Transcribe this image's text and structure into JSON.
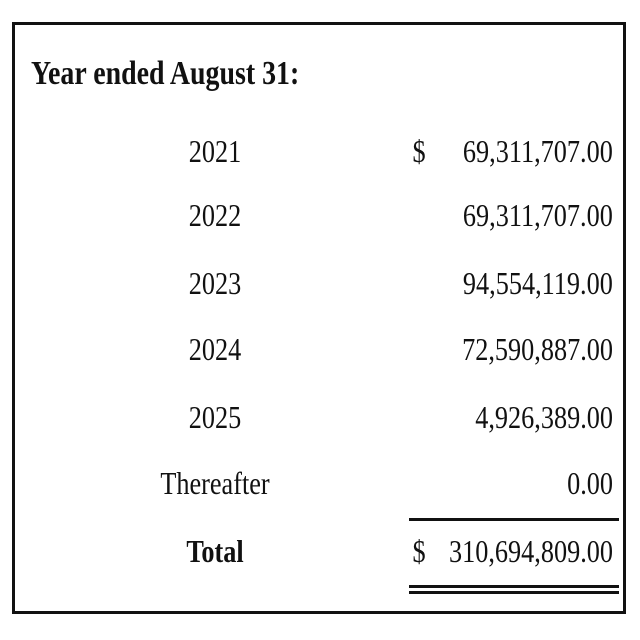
{
  "heading": "Year ended August 31:",
  "currency_symbol": "$",
  "rows": [
    {
      "label": "2021",
      "value": "69,311,707.00"
    },
    {
      "label": "2022",
      "value": "69,311,707.00"
    },
    {
      "label": "2023",
      "value": "94,554,119.00"
    },
    {
      "label": "2024",
      "value": "72,590,887.00"
    },
    {
      "label": "2025",
      "value": "4,926,389.00"
    },
    {
      "label": "Thereafter",
      "value": "0.00"
    }
  ],
  "total": {
    "label": "Total",
    "value": "310,694,809.00"
  }
}
